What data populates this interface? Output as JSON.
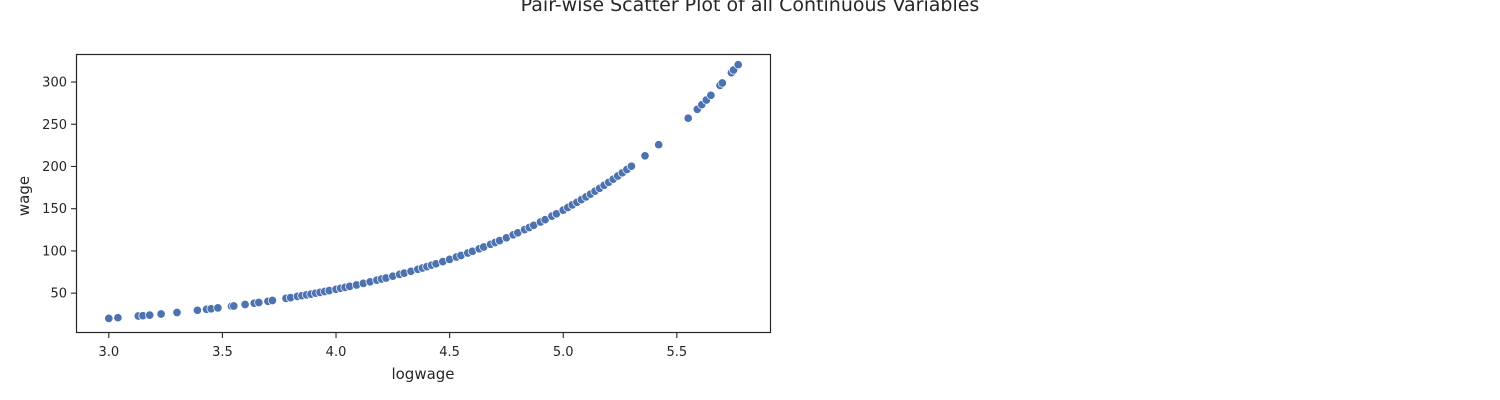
{
  "chart_data": {
    "type": "scatter",
    "title": "Pair-wise Scatter Plot of all Continuous Variables",
    "xlabel": "logwage",
    "ylabel": "wage",
    "xlim": [
      2.86,
      5.91
    ],
    "ylim": [
      4,
      332
    ],
    "xticks": [
      3.0,
      3.5,
      4.0,
      4.5,
      5.0,
      5.5
    ],
    "xtick_labels": [
      "3.0",
      "3.5",
      "4.0",
      "4.5",
      "5.0",
      "5.5"
    ],
    "yticks": [
      50,
      100,
      150,
      200,
      250,
      300
    ],
    "ytick_labels": [
      "50",
      "100",
      "150",
      "200",
      "250",
      "300"
    ],
    "grid": false,
    "colors": {
      "points": "#4c72b0",
      "point_edge": "#ffffff",
      "spine": "#262626"
    },
    "series": [
      {
        "x": [
          3.0,
          3.04,
          3.13,
          3.15,
          3.18,
          3.23,
          3.3,
          3.39,
          3.43,
          3.45,
          3.48,
          3.54,
          3.55,
          3.6,
          3.64,
          3.66,
          3.7,
          3.72,
          3.78,
          3.8,
          3.83,
          3.85,
          3.87,
          3.89,
          3.91,
          3.93,
          3.95,
          3.97,
          4.0,
          4.02,
          4.04,
          4.06,
          4.09,
          4.12,
          4.15,
          4.18,
          4.2,
          4.22,
          4.25,
          4.28,
          4.3,
          4.33,
          4.36,
          4.38,
          4.4,
          4.42,
          4.44,
          4.47,
          4.5,
          4.53,
          4.55,
          4.58,
          4.6,
          4.63,
          4.65,
          4.68,
          4.7,
          4.72,
          4.75,
          4.78,
          4.8,
          4.83,
          4.85,
          4.87,
          4.9,
          4.92,
          4.95,
          4.97,
          5.0,
          5.02,
          5.04,
          5.06,
          5.08,
          5.1,
          5.12,
          5.14,
          5.16,
          5.18,
          5.2,
          5.22,
          5.24,
          5.26,
          5.28,
          5.3,
          5.36,
          5.42,
          5.55,
          5.59,
          5.61,
          5.63,
          5.65,
          5.69,
          5.7,
          5.74,
          5.75,
          5.77
        ],
        "y": [
          20.1,
          20.9,
          22.9,
          23.3,
          24.0,
          25.3,
          27.1,
          29.7,
          30.9,
          31.5,
          32.5,
          34.5,
          34.8,
          36.6,
          38.1,
          38.9,
          40.4,
          41.3,
          43.8,
          44.7,
          46.1,
          47.0,
          47.9,
          48.9,
          49.9,
          50.9,
          51.9,
          53.0,
          54.6,
          55.7,
          56.8,
          58.0,
          59.7,
          61.6,
          63.4,
          65.4,
          66.7,
          68.0,
          70.1,
          72.2,
          73.7,
          75.9,
          78.3,
          79.8,
          81.5,
          83.1,
          84.8,
          87.4,
          90.0,
          92.8,
          94.6,
          97.5,
          99.5,
          102.5,
          104.6,
          107.8,
          110.0,
          112.2,
          115.6,
          119.1,
          121.5,
          125.2,
          127.7,
          130.3,
          134.3,
          137.0,
          141.2,
          144.0,
          148.4,
          151.4,
          154.5,
          157.6,
          160.8,
          164.0,
          167.3,
          170.7,
          174.2,
          177.7,
          181.3,
          184.9,
          188.7,
          192.5,
          196.4,
          200.3,
          212.7,
          225.8,
          257.2,
          267.7,
          273.1,
          278.7,
          284.3,
          296.0,
          298.9,
          311.1,
          314.2,
          320.5
        ]
      }
    ]
  }
}
